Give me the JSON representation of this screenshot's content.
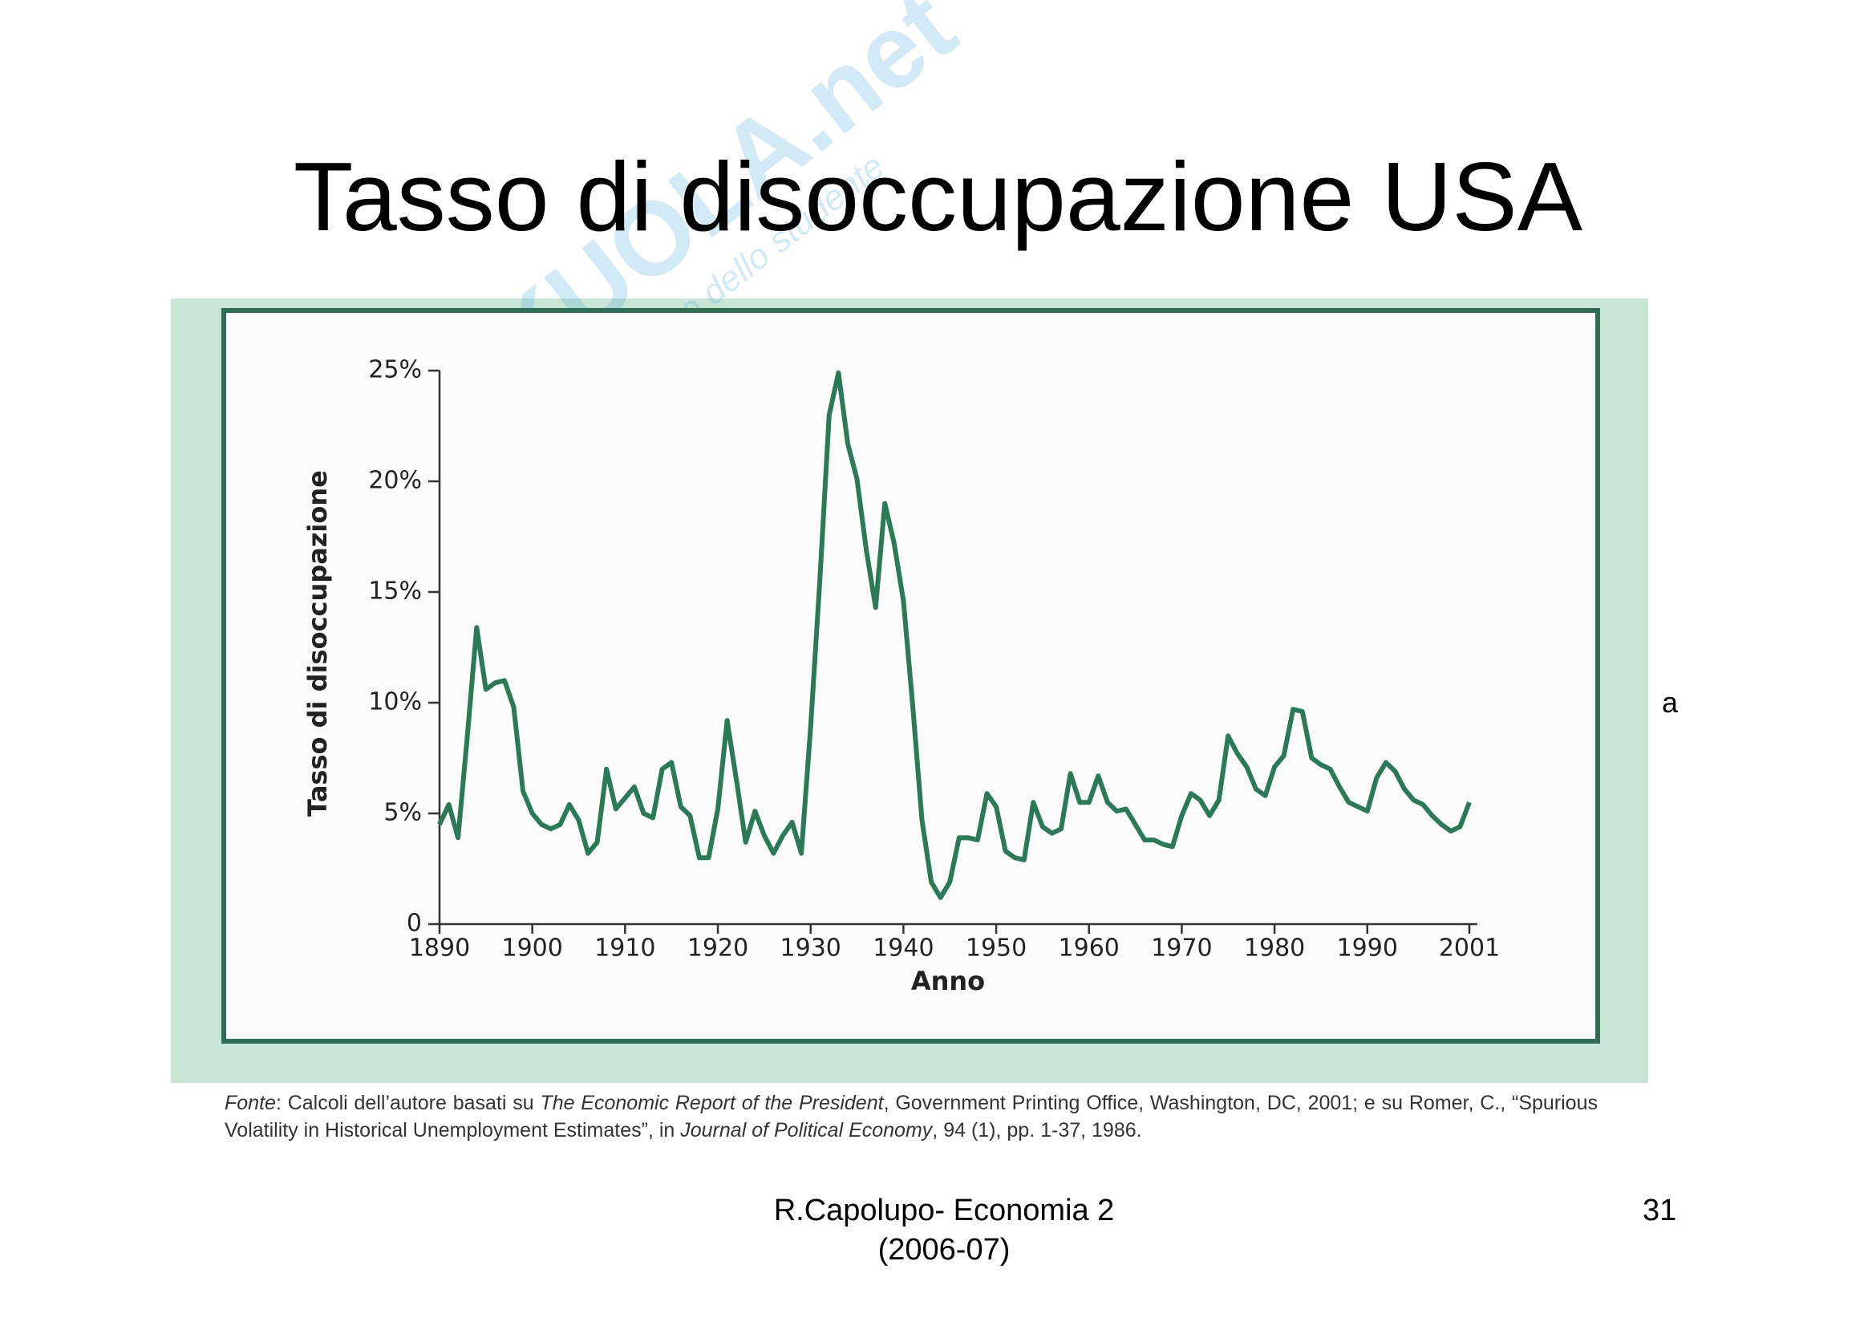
{
  "slide": {
    "title": "Tasso di disoccupazione USA",
    "watermark": [
      "SKUOLA.net",
      "il paradiso dello studente"
    ],
    "side_fragment": "a",
    "source": [
      "Fonte",
      ": Calcoli dell’autore basati su ",
      "The Economic Report of the President",
      ", Government Printing Office, Washington, DC, 2001; e su Romer, C., “Spurious Volatility in Historical Unemployment Estimates”, in ",
      "Journal of Political Economy",
      ", 94 (1), pp. 1-37, 1986."
    ],
    "footer": [
      "R.Capolupo- Economia 2",
      "(2006-07)"
    ],
    "page_number": "31"
  },
  "chart_data": {
    "type": "line",
    "xlabel": "Anno",
    "ylabel": "Tasso di disoccupazione",
    "color": "#2a7a58",
    "x": [
      1890,
      1891,
      1892,
      1893,
      1894,
      1895,
      1896,
      1897,
      1898,
      1899,
      1900,
      1901,
      1902,
      1903,
      1904,
      1905,
      1906,
      1907,
      1908,
      1909,
      1910,
      1911,
      1912,
      1913,
      1914,
      1915,
      1916,
      1917,
      1918,
      1919,
      1920,
      1921,
      1922,
      1923,
      1924,
      1925,
      1926,
      1927,
      1928,
      1929,
      1930,
      1931,
      1932,
      1933,
      1934,
      1935,
      1936,
      1937,
      1938,
      1939,
      1940,
      1941,
      1942,
      1943,
      1944,
      1945,
      1946,
      1947,
      1948,
      1949,
      1950,
      1951,
      1952,
      1953,
      1954,
      1955,
      1956,
      1957,
      1958,
      1959,
      1960,
      1961,
      1962,
      1963,
      1964,
      1965,
      1966,
      1967,
      1968,
      1969,
      1970,
      1971,
      1972,
      1973,
      1974,
      1975,
      1976,
      1977,
      1978,
      1979,
      1980,
      1981,
      1982,
      1983,
      1984,
      1985,
      1986,
      1987,
      1988,
      1989,
      1990,
      1991,
      1992,
      1993,
      1994,
      1995,
      1996,
      1997,
      1998,
      1999,
      2000,
      2001
    ],
    "values": [
      4.5,
      5.4,
      3.9,
      8.5,
      13.4,
      10.6,
      10.9,
      11.0,
      9.8,
      6.0,
      5.0,
      4.5,
      4.3,
      4.5,
      5.4,
      4.7,
      3.2,
      3.7,
      7.0,
      5.2,
      5.7,
      6.2,
      5.0,
      4.8,
      7.0,
      7.3,
      5.3,
      4.9,
      3.0,
      3.0,
      5.2,
      9.2,
      6.5,
      3.7,
      5.1,
      4.0,
      3.2,
      4.0,
      4.6,
      3.2,
      8.9,
      15.6,
      23.0,
      24.9,
      21.7,
      20.1,
      16.9,
      14.3,
      19.0,
      17.2,
      14.6,
      9.9,
      4.7,
      1.9,
      1.2,
      1.9,
      3.9,
      3.9,
      3.8,
      5.9,
      5.3,
      3.3,
      3.0,
      2.9,
      5.5,
      4.4,
      4.1,
      4.3,
      6.8,
      5.5,
      5.5,
      6.7,
      5.5,
      5.1,
      5.2,
      4.5,
      3.8,
      3.8,
      3.6,
      3.5,
      4.9,
      5.9,
      5.6,
      4.9,
      5.6,
      8.5,
      7.7,
      7.1,
      6.1,
      5.8,
      7.1,
      7.6,
      9.7,
      9.6,
      7.5,
      7.2,
      7.0,
      6.2,
      5.5,
      5.3,
      5.1,
      6.6,
      7.3,
      6.9,
      6.1,
      5.6,
      5.4,
      4.9,
      4.5,
      4.2,
      4.4,
      5.5
    ],
    "xlim": [
      1890,
      2001
    ],
    "ylim": [
      0,
      25
    ],
    "xticks": [
      1890,
      1900,
      1910,
      1920,
      1930,
      1940,
      1950,
      1960,
      1970,
      1980,
      1990,
      2001
    ],
    "yticks": [
      0,
      {
        "value": 5,
        "label": "5%"
      },
      {
        "value": 10,
        "label": "10%"
      },
      {
        "value": 15,
        "label": "15%"
      },
      {
        "value": 20,
        "label": "20%"
      },
      {
        "value": 25,
        "label": "25%"
      }
    ]
  }
}
